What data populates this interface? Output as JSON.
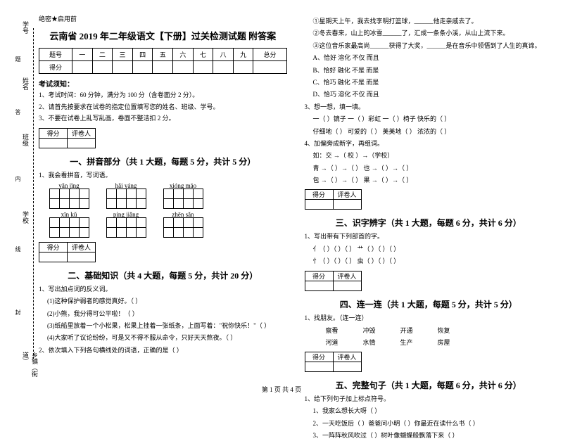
{
  "vertical": {
    "l1": "学号",
    "l2": "姓名",
    "l3": "班级",
    "l4": "学校",
    "l5": "乡镇（街道）",
    "d1": "题",
    "d2": "答",
    "d3": "本",
    "d4": "内",
    "d5": "线",
    "d6": "封",
    "d7": "密"
  },
  "header": {
    "seal": "绝密★启用前",
    "title": "云南省 2019 年二年级语文【下册】过关检测试题 附答案"
  },
  "scoretable": {
    "h": [
      "题号",
      "一",
      "二",
      "三",
      "四",
      "五",
      "六",
      "七",
      "八",
      "九",
      "总分"
    ],
    "r2": "得分"
  },
  "notice": {
    "title": "考试须知：",
    "i1": "1、考试时间：60 分钟，满分为 100 分（含卷面分 2 分）。",
    "i2": "2、请首先按要求在试卷的指定位置填写您的姓名、班级、学号。",
    "i3": "3、不要在试卷上乱写乱画，卷面不整洁扣 2 分。"
  },
  "mini": {
    "c1": "得分",
    "c2": "评卷人"
  },
  "s1": {
    "title": "一、拼音部分（共 1 大题，每题 5 分，共计 5 分）",
    "q1": "1、我会看拼音，写词语。",
    "p": [
      "yǎn  jīng",
      "hǎi  yáng",
      "xióng  māo",
      "xīn  kǔ",
      "píng  jiǎng",
      "zhēn  sǎn"
    ]
  },
  "s2": {
    "title": "二、基础知识（共 4 大题，每题 5 分，共计 20 分）",
    "q1": "1、写出加点词的反义词。",
    "a": "(1)这种保护弱者的感觉真好。（      ）",
    "b": "(2)小熊，我分得可公平啦！（      ）",
    "c": "(3)纸船里放着一个小松果，松果上挂着一张纸条，上面写着：\"祝你快乐！\"（      ）",
    "d": "(4)大家听了议论纷纷，可是又不得不服从命令，只好天天熬夜。（      ）",
    "q2": "2、依次填入下列各句横线处的词语，正确的是（   ）"
  },
  "right": {
    "r1": "①星期天上午，我去找李明打篮球，______他走亲戚去了。",
    "r2": "②冬去春来，山上的冰雪______了，汇成一条条小溪，从山上流下来。",
    "r3": "③这位音乐家最高尚______获得了大奖，______是在音乐中领悟到了人生的真谛。",
    "opts": {
      "a": "A、恰好      溶化      不仅  而且",
      "b": "B、恰好      融化      不是  而是",
      "c": "C、恰巧      融化      不是  而是",
      "d": "D、恰巧      溶化      不仅  而且"
    },
    "q3": "3、想一想，填一填。",
    "q3a": "一（   ）镜子    一（   ）彩虹    一（   ）椅子   快乐的（   ）",
    "q3b": "仔细地（   ）    可爱的（   ）     美美地（   ）    浓浓的（   ）",
    "q4": "4、加偏旁成新字，再组词。",
    "q4a": "如：交 →（ 校 ）→（学校）",
    "q4b": "青 →（   ）→（      ）         也 →（   ）→（      ）",
    "q4c": "包 →（   ）→（      ）         果 →（   ）→（      ）"
  },
  "s3": {
    "title": "三、识字辨字（共 1 大题，每题 6 分，共计 6 分）",
    "q1": "1、写出带有下列部首的字。",
    "a": "亻（   ）（   ）（   ）     艹（   ）（   ）（   ）",
    "b": "忄（   ）（   ）（   ）     虫（   ）（   ）（   ）"
  },
  "s4": {
    "title": "四、连一连（共 1 大题，每题 5 分，共计 5 分）",
    "q1": "1、找朋友。（连一连）",
    "row1": [
      "察看",
      "冲毁",
      "开通",
      "恢复"
    ],
    "row2": [
      "河道",
      "水情",
      "生产",
      "房屋"
    ]
  },
  "s5": {
    "title": "五、完整句子（共 1 大题，每题 6 分，共计 6 分）",
    "q1": "1、给下列句子加上标点符号。",
    "a": "1、我家么想长大呀（   ）",
    "b": "2、一天吃饭后（   ）爸爸问小明（   ）你最近在读什么书（   ）",
    "c": "3、一阵阵秋风吹过（   ）树叶像蝴蝶般飘落下来（   ）"
  },
  "footer": "第 1 页 共 4 页"
}
